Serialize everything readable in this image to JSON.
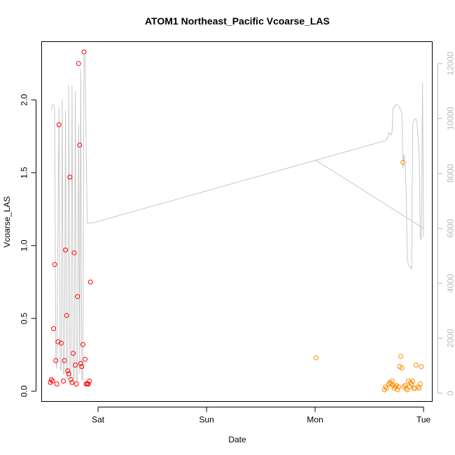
{
  "chart_data": {
    "type": "scatter",
    "title": "ATOM1 Northeast_Pacific Vcoarse_LAS",
    "xlabel": "Date",
    "ylabel": "Vcoarse_LAS",
    "x_ticks": [
      {
        "label": "Sat",
        "value": 1.0
      },
      {
        "label": "Sun",
        "value": 2.0
      },
      {
        "label": "Mon",
        "value": 3.0
      },
      {
        "label": "Tue",
        "value": 4.0
      }
    ],
    "xlim": [
      0.48,
      4.08
    ],
    "ylim": [
      -0.07,
      2.4
    ],
    "y_ticks": [
      0.0,
      0.5,
      1.0,
      1.5,
      2.0
    ],
    "y_tick_labels": [
      "0.0",
      "0.5",
      "1.0",
      "1.5",
      "2.0"
    ],
    "y2lim": [
      -300,
      12800
    ],
    "y2_ticks": [
      0,
      2000,
      4000,
      6000,
      8000,
      10000,
      12000
    ],
    "y2_tick_labels": [
      "0",
      "2000",
      "4000",
      "6000",
      "8000",
      "10000",
      "12000"
    ],
    "grid": false,
    "series": [
      {
        "color": "#ff0000",
        "marker": "open-circle",
        "x": [
          0.56,
          0.57,
          0.58,
          0.59,
          0.6,
          0.61,
          0.62,
          0.63,
          0.64,
          0.66,
          0.68,
          0.69,
          0.7,
          0.71,
          0.72,
          0.73,
          0.74,
          0.75,
          0.76,
          0.77,
          0.78,
          0.79,
          0.8,
          0.81,
          0.82,
          0.83,
          0.84,
          0.85,
          0.86,
          0.87,
          0.88,
          0.89,
          0.9,
          0.91,
          0.92,
          0.93
        ],
        "y": [
          0.06,
          0.08,
          0.07,
          0.43,
          0.87,
          0.21,
          0.05,
          0.34,
          1.83,
          0.33,
          0.07,
          0.21,
          0.97,
          0.52,
          0.14,
          0.12,
          1.47,
          0.08,
          0.06,
          0.26,
          0.95,
          0.18,
          0.05,
          0.65,
          2.25,
          1.69,
          0.19,
          0.17,
          0.32,
          2.33,
          0.22,
          0.05,
          0.05,
          0.05,
          0.07,
          0.75
        ]
      },
      {
        "color": "#ff8c00",
        "marker": "open-circle",
        "x": [
          3.01,
          3.64,
          3.65,
          3.66,
          3.68,
          3.69,
          3.7,
          3.71,
          3.72,
          3.73,
          3.74,
          3.75,
          3.76,
          3.77,
          3.78,
          3.79,
          3.8,
          3.81,
          3.82,
          3.83,
          3.84,
          3.85,
          3.86,
          3.87,
          3.88,
          3.89,
          3.9,
          3.91,
          3.92,
          3.93,
          3.95,
          3.96,
          3.97,
          3.98
        ],
        "y": [
          0.23,
          0.01,
          0.03,
          0.02,
          0.05,
          0.06,
          0.05,
          0.07,
          0.04,
          0.02,
          0.03,
          0.04,
          0.01,
          0.03,
          0.17,
          0.24,
          0.16,
          1.57,
          0.03,
          0.04,
          0.02,
          0.01,
          0.07,
          0.03,
          0.06,
          0.05,
          0.07,
          0.02,
          0.02,
          0.18,
          0.03,
          0.02,
          0.05,
          0.17
        ]
      }
    ],
    "secondary_line": {
      "color": "#c8c8c8",
      "segments": [
        {
          "x": [
            0.57,
            0.58,
            0.59,
            0.6,
            0.61,
            0.62,
            0.64,
            0.65,
            0.66,
            0.67,
            0.68,
            0.69,
            0.7,
            0.71,
            0.72,
            0.73,
            0.74,
            0.75,
            0.76,
            0.77,
            0.78,
            0.79,
            0.8,
            0.81,
            0.82,
            0.83,
            0.84,
            0.85,
            0.86,
            0.87,
            0.88,
            0.89,
            0.9,
            0.91,
            0.92,
            0.93,
            0.94,
            0.95,
            3.65,
            3.67,
            3.68,
            3.7,
            3.71,
            3.72,
            3.73,
            3.74,
            3.75,
            3.76,
            3.78,
            3.8,
            3.81,
            3.82,
            3.83,
            3.84,
            3.85,
            3.86,
            3.87,
            3.88,
            3.89,
            3.9,
            3.91,
            3.92,
            3.93,
            3.94,
            3.95,
            3.96,
            3.97,
            3.98,
            3.99,
            4.0
          ],
          "y": [
            10300,
            10500,
            10500,
            10400,
            1200,
            900,
            10400,
            1000,
            800,
            10700,
            700,
            700,
            10300,
            600,
            500,
            11200,
            600,
            500,
            11200,
            600,
            500,
            11000,
            400,
            500,
            9800,
            700,
            11800,
            500,
            500,
            12300,
            12300,
            9000,
            6200,
            6200,
            6200,
            6200,
            6200,
            6200,
            9200,
            9300,
            9500,
            9400,
            9500,
            10400,
            10400,
            10500,
            10500,
            10500,
            10400,
            10200,
            8200,
            8700,
            8300,
            7300,
            4900,
            4700,
            4600,
            4600,
            4500,
            9800,
            9900,
            10000,
            10000,
            9800,
            9300,
            8700,
            5600,
            5600,
            11300,
            5700
          ]
        },
        {
          "x": [
            3.0,
            4.0
          ],
          "y": [
            8500,
            6000
          ]
        }
      ]
    }
  }
}
